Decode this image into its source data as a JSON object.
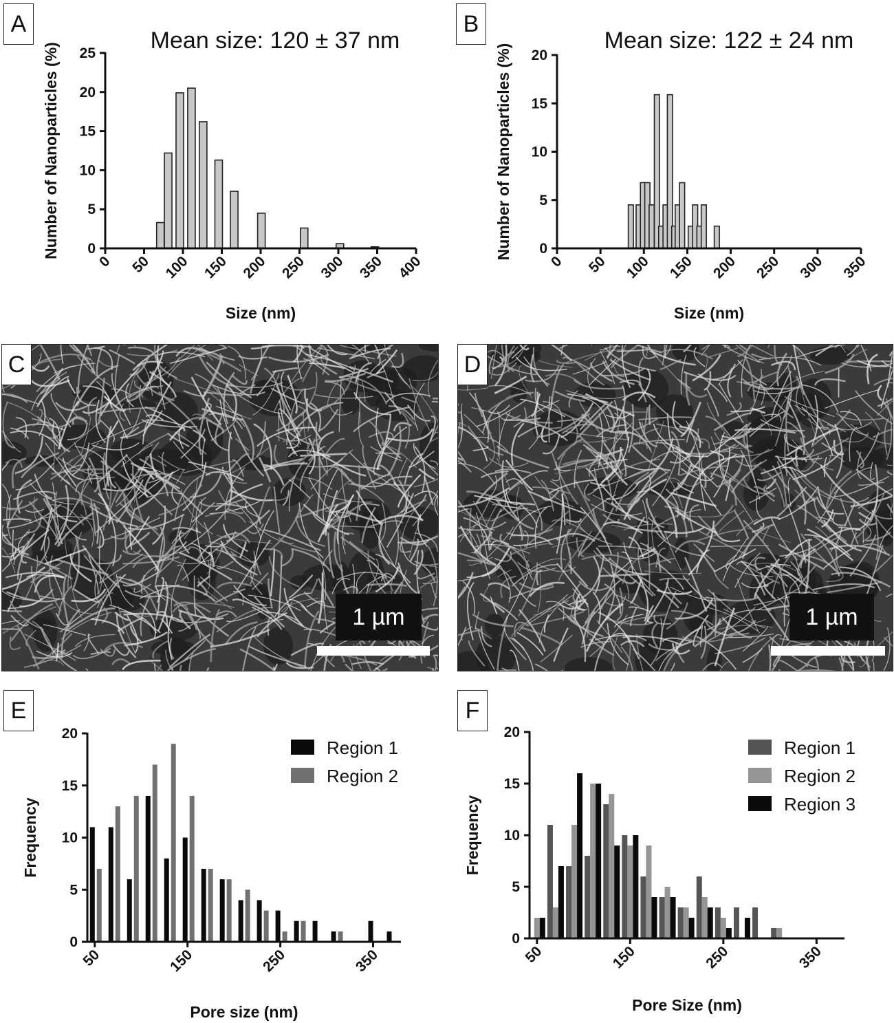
{
  "panels": {
    "A": "A",
    "B": "B",
    "C": "C",
    "D": "D",
    "E": "E",
    "F": "F"
  },
  "images": {
    "C": {
      "scale_label": "1 µm",
      "description_hidden": null
    },
    "D": {
      "scale_label": "1 µm"
    }
  },
  "chart_data": [
    {
      "id": "A",
      "type": "bar",
      "title": "Mean size: 120 ± 37 nm",
      "xlabel": "Size (nm)",
      "ylabel": "Number of Nanoparticles (%)",
      "xlim": [
        0,
        400
      ],
      "ylim": [
        0,
        25
      ],
      "xticks": [
        0,
        50,
        100,
        150,
        200,
        250,
        300,
        350,
        400
      ],
      "yticks": [
        0,
        5,
        10,
        15,
        20,
        25
      ],
      "color": "#c8c8c8",
      "x": [
        71,
        81,
        96,
        111,
        126,
        146,
        166,
        201,
        256,
        302,
        347
      ],
      "values": [
        3.3,
        12.2,
        19.9,
        20.5,
        16.2,
        11.3,
        7.3,
        4.5,
        2.6,
        0.6,
        0.2
      ]
    },
    {
      "id": "B",
      "type": "bar",
      "title": "Mean size: 122 ± 24 nm",
      "xlabel": "Size (nm)",
      "ylabel": "Number of Nanoparticles (%)",
      "xlim": [
        0,
        350
      ],
      "ylim": [
        0,
        20
      ],
      "xticks": [
        0,
        50,
        100,
        150,
        200,
        250,
        300,
        350
      ],
      "yticks": [
        0,
        5,
        10,
        15,
        20
      ],
      "color": "#c8c8c8",
      "x": [
        85,
        94,
        99,
        104,
        109,
        115,
        120,
        125,
        130,
        135,
        139,
        144,
        154,
        159,
        164,
        169,
        184
      ],
      "values": [
        4.5,
        4.5,
        6.8,
        6.8,
        4.5,
        15.9,
        2.3,
        4.5,
        15.9,
        2.3,
        4.5,
        6.8,
        2.3,
        4.5,
        2.3,
        4.5,
        2.3
      ]
    },
    {
      "id": "E",
      "type": "bar",
      "xlabel": "Pore size (nm)",
      "ylabel": "Frequency",
      "xlim": [
        42,
        380
      ],
      "ylim": [
        0,
        20
      ],
      "xticks": [
        50,
        150,
        250,
        350
      ],
      "yticks": [
        0,
        5,
        10,
        15,
        20
      ],
      "legend": "top-right",
      "categories": [
        50,
        70,
        90,
        110,
        130,
        150,
        170,
        190,
        210,
        230,
        250,
        270,
        290,
        310,
        330,
        350,
        370
      ],
      "series": [
        {
          "name": "Region 1",
          "color": "#0a0a0a",
          "values": [
            11,
            11,
            6,
            14,
            8,
            10,
            7,
            6,
            4,
            4,
            3,
            2,
            2,
            1,
            0,
            2,
            1
          ]
        },
        {
          "name": "Region 2",
          "color": "#707070",
          "values": [
            7,
            13,
            14,
            17,
            19,
            14,
            7,
            6,
            5,
            3,
            1,
            2,
            0,
            1,
            0,
            0,
            0
          ]
        }
      ]
    },
    {
      "id": "F",
      "type": "bar",
      "xlabel": "Pore Size (nm)",
      "ylabel": "Frequency",
      "xlim": [
        42,
        380
      ],
      "ylim": [
        0,
        20
      ],
      "xticks": [
        50,
        150,
        250,
        350
      ],
      "yticks": [
        0,
        5,
        10,
        15,
        20
      ],
      "legend": "top-right",
      "categories": [
        50,
        70,
        90,
        110,
        130,
        150,
        170,
        190,
        210,
        230,
        250,
        270,
        290,
        310
      ],
      "series": [
        {
          "name": "Region 1",
          "color": "#555555",
          "values": [
            0,
            11,
            7,
            8,
            13,
            10,
            6,
            4,
            3,
            6,
            3,
            3,
            3,
            1
          ]
        },
        {
          "name": "Region 2",
          "color": "#959595",
          "values": [
            2,
            3,
            11,
            15,
            14,
            9,
            9,
            5,
            3,
            4,
            2,
            0,
            0,
            1
          ]
        },
        {
          "name": "Region 3",
          "color": "#0a0a0a",
          "values": [
            2,
            7,
            16,
            15,
            9,
            10,
            4,
            4,
            2,
            3,
            1,
            2,
            0,
            0
          ]
        }
      ]
    }
  ]
}
